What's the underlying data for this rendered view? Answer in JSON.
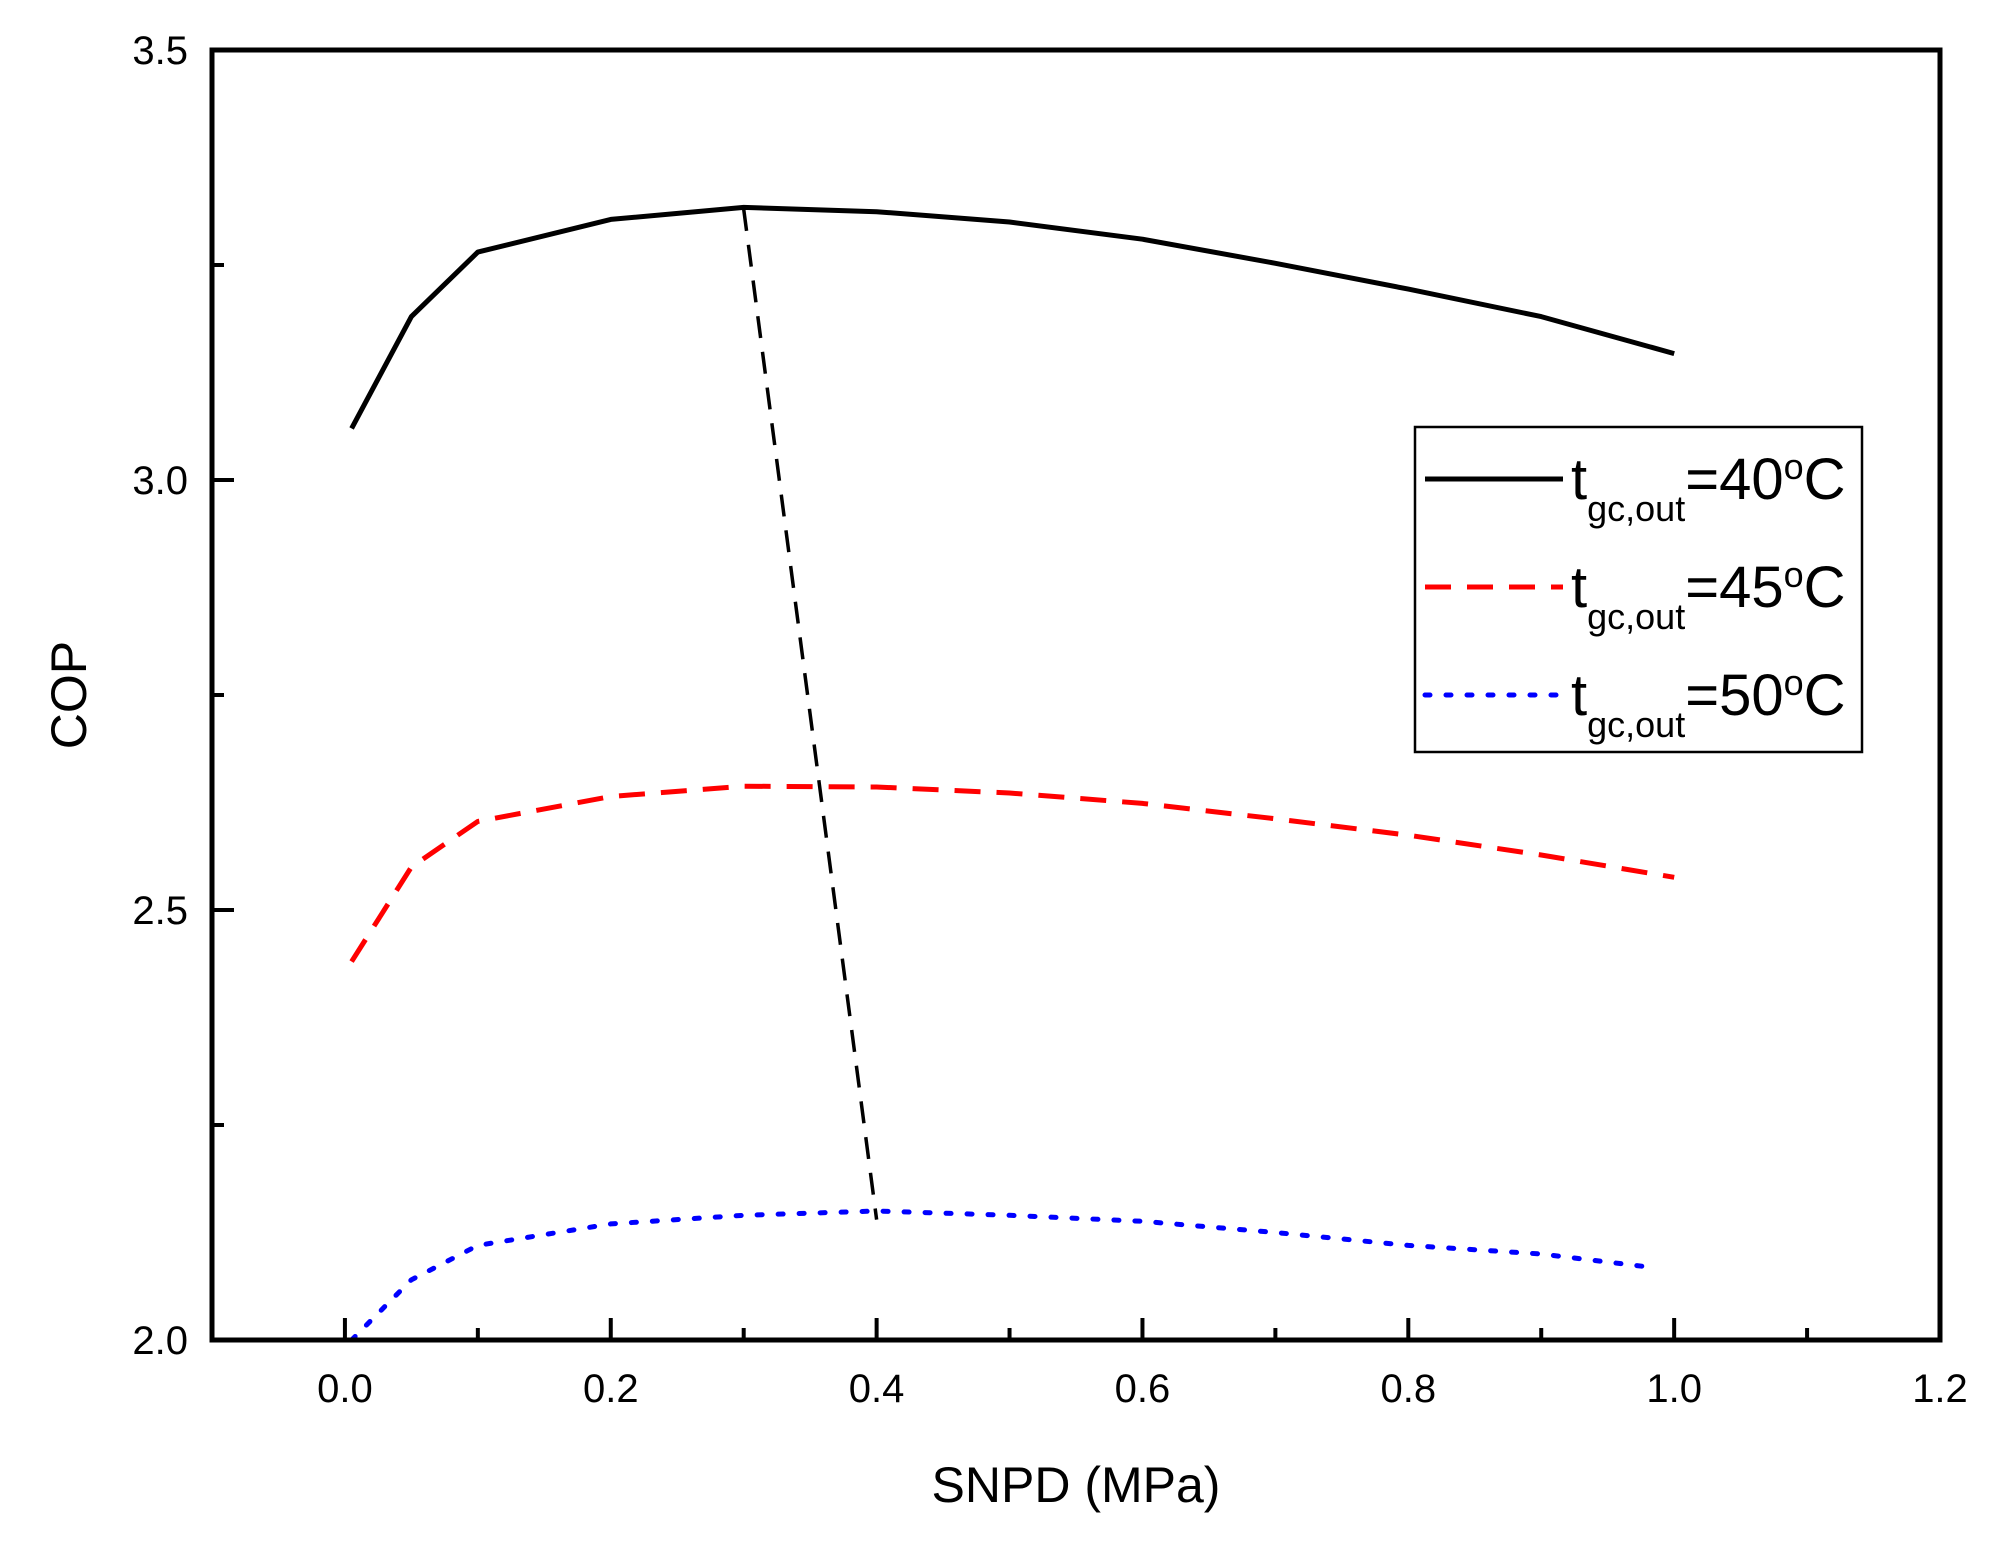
{
  "chart_data": {
    "type": "line",
    "xlabel": "SNPD (MPa)",
    "ylabel": "COP",
    "xlim": [
      -0.1,
      1.2
    ],
    "ylim": [
      2.0,
      3.5
    ],
    "x_ticks": [
      "0.0",
      "0.2",
      "0.4",
      "0.6",
      "0.8",
      "1.0",
      "1.2"
    ],
    "y_ticks": [
      "2.0",
      "2.5",
      "3.0",
      "3.5"
    ],
    "x_tick_values": [
      0.0,
      0.2,
      0.4,
      0.6,
      0.8,
      1.0,
      1.2
    ],
    "y_tick_values": [
      2.0,
      2.5,
      3.0,
      3.5
    ],
    "grid": false,
    "legend_position": "right",
    "series": [
      {
        "name": "t_gc,out=40°C",
        "legend_main": "t",
        "legend_sub": "gc,out",
        "legend_rest": "=40",
        "legend_sup": "o",
        "legend_unit": "C",
        "color": "#000000",
        "style": "solid",
        "x": [
          0.005,
          0.05,
          0.1,
          0.2,
          0.3,
          0.4,
          0.5,
          0.6,
          0.7,
          0.8,
          0.9,
          1.0
        ],
        "y": [
          3.06,
          3.19,
          3.265,
          3.303,
          3.317,
          3.312,
          3.3,
          3.28,
          3.252,
          3.222,
          3.19,
          3.147
        ]
      },
      {
        "name": "t_gc,out=45°C",
        "legend_main": "t",
        "legend_sub": "gc,out",
        "legend_rest": "=45",
        "legend_sup": "o",
        "legend_unit": "C",
        "color": "#ff0000",
        "style": "dashed",
        "x": [
          0.005,
          0.05,
          0.1,
          0.2,
          0.3,
          0.4,
          0.5,
          0.6,
          0.7,
          0.8,
          0.9,
          1.0
        ],
        "y": [
          2.44,
          2.55,
          2.603,
          2.632,
          2.644,
          2.643,
          2.636,
          2.624,
          2.606,
          2.587,
          2.564,
          2.538
        ]
      },
      {
        "name": "t_gc,out=50°C",
        "legend_main": "t",
        "legend_sub": "gc,out",
        "legend_rest": "=50",
        "legend_sup": "o",
        "legend_unit": "C",
        "color": "#0000ff",
        "style": "dotted",
        "x": [
          0.005,
          0.05,
          0.1,
          0.2,
          0.3,
          0.4,
          0.5,
          0.6,
          0.7,
          0.8,
          0.9,
          0.98
        ],
        "y": [
          2.0,
          2.07,
          2.11,
          2.135,
          2.145,
          2.15,
          2.145,
          2.138,
          2.125,
          2.11,
          2.1,
          2.085
        ]
      }
    ],
    "optimum_line": {
      "color": "#000000",
      "style": "dashed",
      "x": [
        0.3,
        0.4
      ],
      "y": [
        3.315,
        2.14
      ]
    }
  }
}
